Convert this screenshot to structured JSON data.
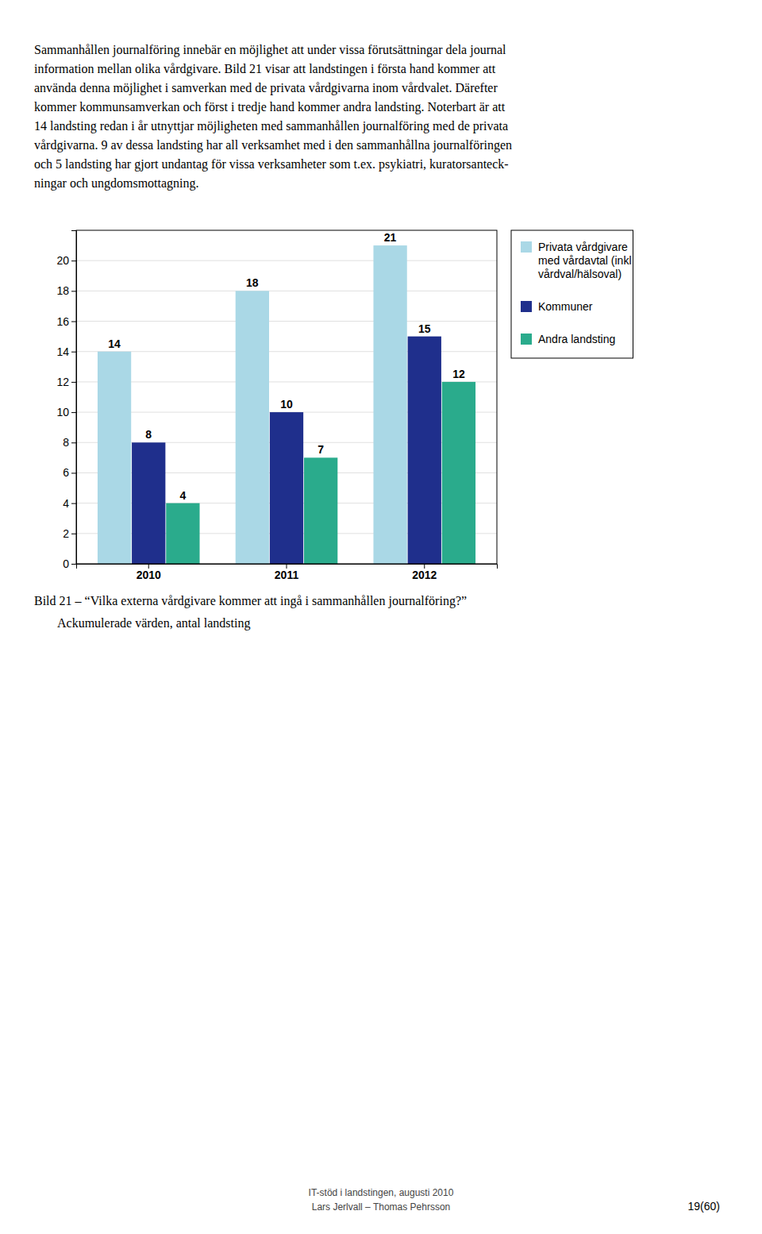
{
  "paragraph_lines": [
    "Sammanhållen journalföring innebär en möjlighet att under vissa förutsättningar dela journal",
    "information mellan olika vårdgivare. Bild 21 visar att landstingen i första hand kommer att",
    "använda denna möjlighet i samverkan med de privata vårdgivarna inom vårdvalet.  Därefter",
    "kommer kommunsamverkan och först i tredje hand kommer andra landsting. Noterbart är att",
    "14 landsting redan i år utnyttjar möjligheten med sammanhållen journalföring med de privata",
    "vårdgivarna. 9 av dessa landsting har all verksamhet med i den sammanhållna journalföringen",
    "och 5 landsting har gjort undantag för vissa verksamheter som t.ex. psykiatri, kuratorsanteck-",
    "ningar och ungdomsmottagning."
  ],
  "chart_data": {
    "type": "bar",
    "title": "Bild 21 – “Vilka externa vårdgivare kommer att ingå i sammanhållen journalföring?”",
    "subtitle": "Ackumulerade värden, antal landsting",
    "categories": [
      "2010",
      "2011",
      "2012"
    ],
    "series": [
      {
        "name": "Privata vårdgivare\nmed vårdavtal (inkl\nvårdval/hälsoval)",
        "color": "#aad8e6",
        "values": [
          14,
          18,
          21
        ]
      },
      {
        "name": "Kommuner",
        "color": "#1f2f8c",
        "values": [
          8,
          10,
          15
        ]
      },
      {
        "name": "Andra landsting",
        "color": "#2aab8c",
        "values": [
          4,
          7,
          12
        ]
      }
    ],
    "ylim": [
      0,
      22
    ],
    "yticks": [
      0,
      2,
      4,
      6,
      8,
      10,
      12,
      14,
      16,
      18,
      20
    ],
    "grid": true,
    "legend": "right",
    "data_labels": true
  },
  "footer_lines": [
    "IT-stöd i landstingen, augusti 2010",
    "Lars Jerlvall – Thomas Pehrsson"
  ],
  "page_number": "19(60)"
}
